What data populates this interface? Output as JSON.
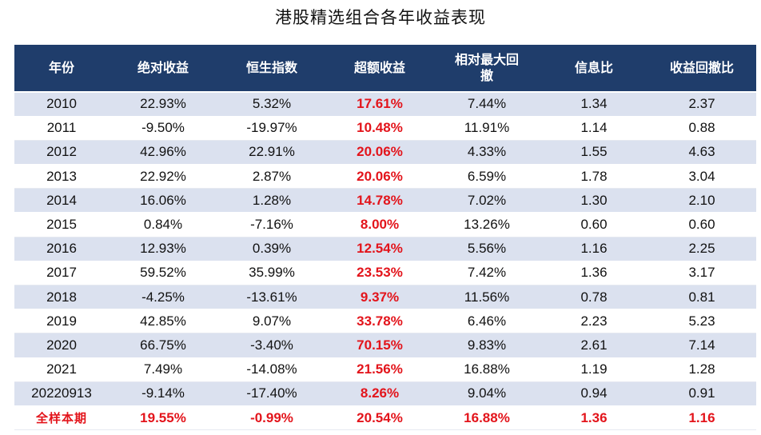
{
  "title": "港股精选组合各年收益表现",
  "headers": [
    "年份",
    "绝对收益",
    "恒生指数",
    "超额收益",
    "相对最大回撤",
    "信息比",
    "收益回撤比"
  ],
  "rows": [
    [
      "2010",
      "22.93%",
      "5.32%",
      "17.61%",
      "7.44%",
      "1.34",
      "2.37"
    ],
    [
      "2011",
      "-9.50%",
      "-19.97%",
      "10.48%",
      "11.91%",
      "1.14",
      "0.88"
    ],
    [
      "2012",
      "42.96%",
      "22.91%",
      "20.06%",
      "4.33%",
      "1.55",
      "4.63"
    ],
    [
      "2013",
      "22.92%",
      "2.87%",
      "20.06%",
      "6.59%",
      "1.78",
      "3.04"
    ],
    [
      "2014",
      "16.06%",
      "1.28%",
      "14.78%",
      "7.02%",
      "1.30",
      "2.10"
    ],
    [
      "2015",
      "0.84%",
      "-7.16%",
      "8.00%",
      "13.26%",
      "0.60",
      "0.60"
    ],
    [
      "2016",
      "12.93%",
      "0.39%",
      "12.54%",
      "5.56%",
      "1.16",
      "2.25"
    ],
    [
      "2017",
      "59.52%",
      "35.99%",
      "23.53%",
      "7.42%",
      "1.36",
      "3.17"
    ],
    [
      "2018",
      "-4.25%",
      "-13.61%",
      "9.37%",
      "11.56%",
      "0.78",
      "0.81"
    ],
    [
      "2019",
      "42.85%",
      "9.07%",
      "33.78%",
      "6.46%",
      "2.23",
      "5.23"
    ],
    [
      "2020",
      "66.75%",
      "-3.40%",
      "70.15%",
      "9.83%",
      "2.61",
      "7.14"
    ],
    [
      "2021",
      "7.49%",
      "-14.08%",
      "21.56%",
      "16.88%",
      "1.19",
      "1.28"
    ],
    [
      "20220913",
      "-9.14%",
      "-17.40%",
      "8.26%",
      "9.04%",
      "0.94",
      "0.91"
    ]
  ],
  "summary": [
    "全样本期",
    "19.55%",
    "-0.99%",
    "20.54%",
    "16.88%",
    "1.36",
    "1.16"
  ],
  "colors": {
    "header_bg": "#1f3d6b",
    "band": "#dbe1ef",
    "highlight": "#e3141b"
  }
}
